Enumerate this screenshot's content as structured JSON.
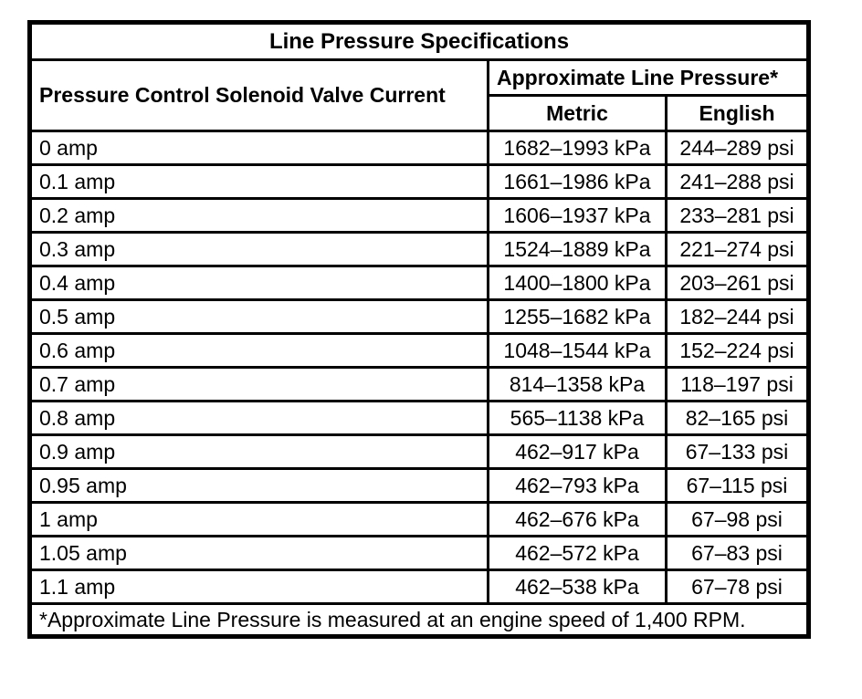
{
  "table": {
    "title": "Line Pressure Specifications",
    "col_current_header": "Pressure Control Solenoid Valve Current",
    "col_pressure_header": "Approximate Line Pressure*",
    "col_metric_header": "Metric",
    "col_english_header": "English",
    "footnote": "*Approximate Line Pressure is measured at an engine speed of 1,400 RPM.",
    "rows": [
      {
        "current": "0 amp",
        "metric": "1682–1993 kPa",
        "english": "244–289 psi"
      },
      {
        "current": "0.1 amp",
        "metric": "1661–1986 kPa",
        "english": "241–288 psi"
      },
      {
        "current": "0.2 amp",
        "metric": "1606–1937 kPa",
        "english": "233–281 psi"
      },
      {
        "current": "0.3 amp",
        "metric": "1524–1889 kPa",
        "english": "221–274 psi"
      },
      {
        "current": "0.4 amp",
        "metric": "1400–1800 kPa",
        "english": "203–261 psi"
      },
      {
        "current": "0.5 amp",
        "metric": "1255–1682 kPa",
        "english": "182–244 psi"
      },
      {
        "current": "0.6 amp",
        "metric": "1048–1544 kPa",
        "english": "152–224 psi"
      },
      {
        "current": "0.7 amp",
        "metric": "814–1358 kPa",
        "english": "118–197 psi"
      },
      {
        "current": "0.8 amp",
        "metric": "565–1138 kPa",
        "english": "82–165 psi"
      },
      {
        "current": "0.9 amp",
        "metric": "462–917 kPa",
        "english": "67–133 psi"
      },
      {
        "current": "0.95 amp",
        "metric": "462–793 kPa",
        "english": "67–115 psi"
      },
      {
        "current": "1 amp",
        "metric": "462–676 kPa",
        "english": "67–98 psi"
      },
      {
        "current": "1.05 amp",
        "metric": "462–572 kPa",
        "english": "67–83 psi"
      },
      {
        "current": "1.1 amp",
        "metric": "462–538 kPa",
        "english": "67–78 psi"
      }
    ]
  },
  "colors": {
    "border": "#000000",
    "background": "#ffffff",
    "text": "#000000"
  }
}
